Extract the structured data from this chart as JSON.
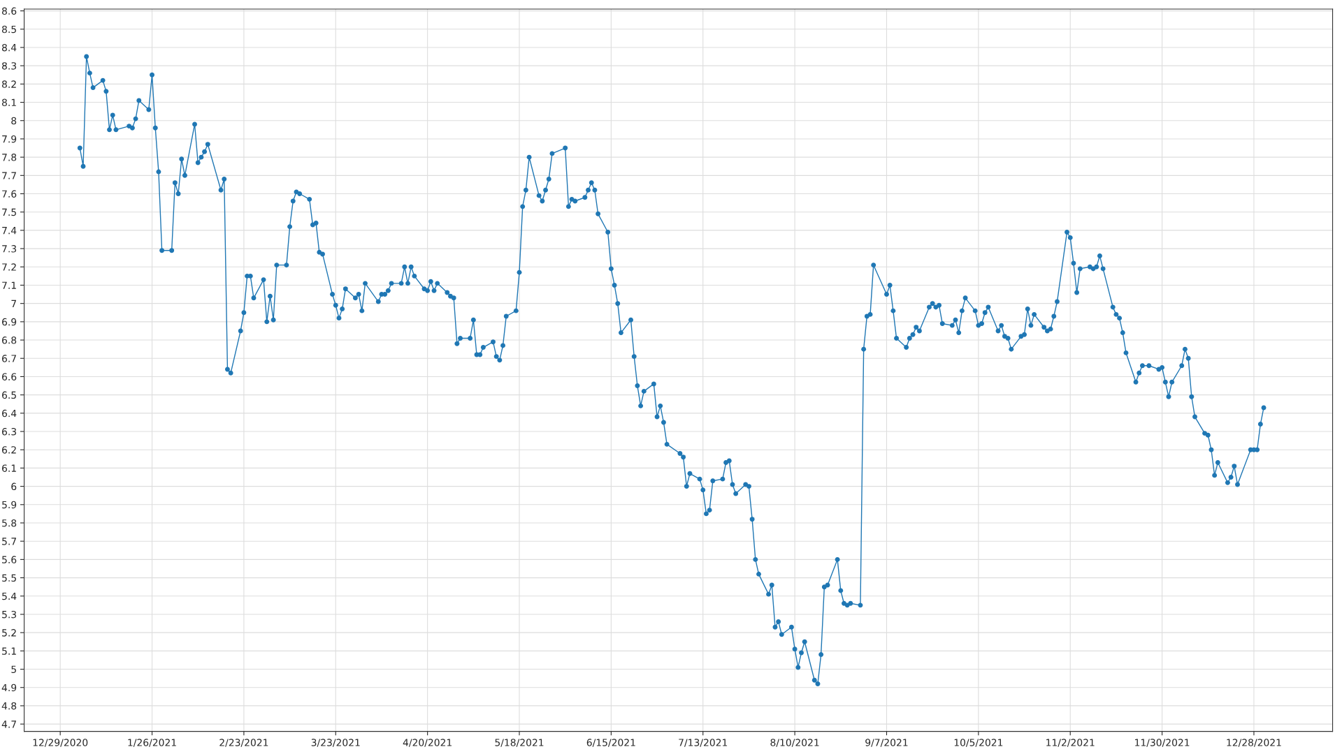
{
  "chart_data": {
    "type": "line",
    "marker": "circle",
    "line_style": "solid",
    "grid": true,
    "xlim": [
      "2020-12-18",
      "2022-01-21"
    ],
    "ylim": [
      4.66,
      8.61
    ],
    "xticks": [
      {
        "value": "2020-12-29",
        "label": "12/29/2020"
      },
      {
        "value": "2021-01-26",
        "label": "1/26/2021"
      },
      {
        "value": "2021-02-23",
        "label": "2/23/2021"
      },
      {
        "value": "2021-03-23",
        "label": "3/23/2021"
      },
      {
        "value": "2021-04-20",
        "label": "4/20/2021"
      },
      {
        "value": "2021-05-18",
        "label": "5/18/2021"
      },
      {
        "value": "2021-06-15",
        "label": "6/15/2021"
      },
      {
        "value": "2021-07-13",
        "label": "7/13/2021"
      },
      {
        "value": "2021-08-10",
        "label": "8/10/2021"
      },
      {
        "value": "2021-09-07",
        "label": "9/7/2021"
      },
      {
        "value": "2021-10-05",
        "label": "10/5/2021"
      },
      {
        "value": "2021-11-02",
        "label": "11/2/2021"
      },
      {
        "value": "2021-11-30",
        "label": "11/30/2021"
      },
      {
        "value": "2021-12-28",
        "label": "12/28/2021"
      }
    ],
    "yticks": [
      4.7,
      4.8,
      4.9,
      5,
      5.1,
      5.2,
      5.3,
      5.4,
      5.5,
      5.6,
      5.7,
      5.8,
      5.9,
      6,
      6.1,
      6.2,
      6.3,
      6.4,
      6.5,
      6.6,
      6.7,
      6.8,
      6.9,
      7,
      7.1,
      7.2,
      7.3,
      7.4,
      7.5,
      7.6,
      7.7,
      7.8,
      7.9,
      8,
      8.1,
      8.2,
      8.3,
      8.4,
      8.5,
      8.6
    ],
    "x": [
      "2021-01-04",
      "2021-01-05",
      "2021-01-06",
      "2021-01-07",
      "2021-01-08",
      "2021-01-11",
      "2021-01-12",
      "2021-01-13",
      "2021-01-14",
      "2021-01-15",
      "2021-01-19",
      "2021-01-20",
      "2021-01-21",
      "2021-01-22",
      "2021-01-25",
      "2021-01-26",
      "2021-01-27",
      "2021-01-28",
      "2021-01-29",
      "2021-02-01",
      "2021-02-02",
      "2021-02-03",
      "2021-02-04",
      "2021-02-05",
      "2021-02-08",
      "2021-02-09",
      "2021-02-10",
      "2021-02-11",
      "2021-02-12",
      "2021-02-16",
      "2021-02-17",
      "2021-02-18",
      "2021-02-19",
      "2021-02-22",
      "2021-02-23",
      "2021-02-24",
      "2021-02-25",
      "2021-02-26",
      "2021-03-01",
      "2021-03-02",
      "2021-03-03",
      "2021-03-04",
      "2021-03-05",
      "2021-03-08",
      "2021-03-09",
      "2021-03-10",
      "2021-03-11",
      "2021-03-12",
      "2021-03-15",
      "2021-03-16",
      "2021-03-17",
      "2021-03-18",
      "2021-03-19",
      "2021-03-22",
      "2021-03-23",
      "2021-03-24",
      "2021-03-25",
      "2021-03-26",
      "2021-03-29",
      "2021-03-30",
      "2021-03-31",
      "2021-04-01",
      "2021-04-05",
      "2021-04-06",
      "2021-04-07",
      "2021-04-08",
      "2021-04-09",
      "2021-04-12",
      "2021-04-13",
      "2021-04-14",
      "2021-04-15",
      "2021-04-16",
      "2021-04-19",
      "2021-04-20",
      "2021-04-21",
      "2021-04-22",
      "2021-04-23",
      "2021-04-26",
      "2021-04-27",
      "2021-04-28",
      "2021-04-29",
      "2021-04-30",
      "2021-05-03",
      "2021-05-04",
      "2021-05-05",
      "2021-05-06",
      "2021-05-07",
      "2021-05-10",
      "2021-05-11",
      "2021-05-12",
      "2021-05-13",
      "2021-05-14",
      "2021-05-17",
      "2021-05-18",
      "2021-05-19",
      "2021-05-20",
      "2021-05-21",
      "2021-05-24",
      "2021-05-25",
      "2021-05-26",
      "2021-05-27",
      "2021-05-28",
      "2021-06-01",
      "2021-06-02",
      "2021-06-03",
      "2021-06-04",
      "2021-06-07",
      "2021-06-08",
      "2021-06-09",
      "2021-06-10",
      "2021-06-11",
      "2021-06-14",
      "2021-06-15",
      "2021-06-16",
      "2021-06-17",
      "2021-06-18",
      "2021-06-21",
      "2021-06-22",
      "2021-06-23",
      "2021-06-24",
      "2021-06-25",
      "2021-06-28",
      "2021-06-29",
      "2021-06-30",
      "2021-07-01",
      "2021-07-02",
      "2021-07-06",
      "2021-07-07",
      "2021-07-08",
      "2021-07-09",
      "2021-07-12",
      "2021-07-13",
      "2021-07-14",
      "2021-07-15",
      "2021-07-16",
      "2021-07-19",
      "2021-07-20",
      "2021-07-21",
      "2021-07-22",
      "2021-07-23",
      "2021-07-26",
      "2021-07-27",
      "2021-07-28",
      "2021-07-29",
      "2021-07-30",
      "2021-08-02",
      "2021-08-03",
      "2021-08-04",
      "2021-08-05",
      "2021-08-06",
      "2021-08-09",
      "2021-08-10",
      "2021-08-11",
      "2021-08-12",
      "2021-08-13",
      "2021-08-16",
      "2021-08-17",
      "2021-08-18",
      "2021-08-19",
      "2021-08-20",
      "2021-08-23",
      "2021-08-24",
      "2021-08-25",
      "2021-08-26",
      "2021-08-27",
      "2021-08-30",
      "2021-08-31",
      "2021-09-01",
      "2021-09-02",
      "2021-09-03",
      "2021-09-07",
      "2021-09-08",
      "2021-09-09",
      "2021-09-10",
      "2021-09-13",
      "2021-09-14",
      "2021-09-15",
      "2021-09-16",
      "2021-09-17",
      "2021-09-20",
      "2021-09-21",
      "2021-09-22",
      "2021-09-23",
      "2021-09-24",
      "2021-09-27",
      "2021-09-28",
      "2021-09-29",
      "2021-09-30",
      "2021-10-01",
      "2021-10-04",
      "2021-10-05",
      "2021-10-06",
      "2021-10-07",
      "2021-10-08",
      "2021-10-11",
      "2021-10-12",
      "2021-10-13",
      "2021-10-14",
      "2021-10-15",
      "2021-10-18",
      "2021-10-19",
      "2021-10-20",
      "2021-10-21",
      "2021-10-22",
      "2021-10-25",
      "2021-10-26",
      "2021-10-27",
      "2021-10-28",
      "2021-10-29",
      "2021-11-01",
      "2021-11-02",
      "2021-11-03",
      "2021-11-04",
      "2021-11-05",
      "2021-11-08",
      "2021-11-09",
      "2021-11-10",
      "2021-11-11",
      "2021-11-12",
      "2021-11-15",
      "2021-11-16",
      "2021-11-17",
      "2021-11-18",
      "2021-11-19",
      "2021-11-22",
      "2021-11-23",
      "2021-11-24",
      "2021-11-26",
      "2021-11-29",
      "2021-11-30",
      "2021-12-01",
      "2021-12-02",
      "2021-12-03",
      "2021-12-06",
      "2021-12-07",
      "2021-12-08",
      "2021-12-09",
      "2021-12-10",
      "2021-12-13",
      "2021-12-14",
      "2021-12-15",
      "2021-12-16",
      "2021-12-17",
      "2021-12-20",
      "2021-12-21",
      "2021-12-22",
      "2021-12-23",
      "2021-12-27",
      "2021-12-28",
      "2021-12-29",
      "2021-12-30",
      "2021-12-31"
    ],
    "series": [
      {
        "color": "#1f77b4",
        "values": [
          7.85,
          7.75,
          8.35,
          8.26,
          8.18,
          8.22,
          8.16,
          7.95,
          8.03,
          7.95,
          7.97,
          7.96,
          8.01,
          8.11,
          8.06,
          8.25,
          7.96,
          7.72,
          7.29,
          7.29,
          7.66,
          7.6,
          7.79,
          7.7,
          7.98,
          7.77,
          7.8,
          7.83,
          7.87,
          7.62,
          7.68,
          6.64,
          6.62,
          6.85,
          6.95,
          7.15,
          7.15,
          7.03,
          7.13,
          6.9,
          7.04,
          6.91,
          7.21,
          7.21,
          7.42,
          7.56,
          7.61,
          7.6,
          7.57,
          7.43,
          7.44,
          7.28,
          7.27,
          7.05,
          6.99,
          6.92,
          6.97,
          7.08,
          7.03,
          7.05,
          6.96,
          7.11,
          7.01,
          7.05,
          7.05,
          7.07,
          7.11,
          7.11,
          7.2,
          7.11,
          7.2,
          7.15,
          7.08,
          7.07,
          7.12,
          7.07,
          7.11,
          7.06,
          7.04,
          7.03,
          6.78,
          6.81,
          6.81,
          6.91,
          6.72,
          6.72,
          6.76,
          6.79,
          6.71,
          6.69,
          6.77,
          6.93,
          6.96,
          7.17,
          7.53,
          7.62,
          7.8,
          7.59,
          7.56,
          7.62,
          7.68,
          7.82,
          7.85,
          7.53,
          7.57,
          7.56,
          7.58,
          7.62,
          7.66,
          7.62,
          7.49,
          7.39,
          7.19,
          7.1,
          7.0,
          6.84,
          6.91,
          6.71,
          6.55,
          6.44,
          6.52,
          6.56,
          6.38,
          6.44,
          6.35,
          6.23,
          6.18,
          6.16,
          6.0,
          6.07,
          6.04,
          5.98,
          5.85,
          5.87,
          6.03,
          6.04,
          6.13,
          6.14,
          6.01,
          5.96,
          6.01,
          6.0,
          5.82,
          5.6,
          5.52,
          5.41,
          5.46,
          5.23,
          5.26,
          5.19,
          5.23,
          5.11,
          5.01,
          5.09,
          5.15,
          4.94,
          4.92,
          5.08,
          5.45,
          5.46,
          5.6,
          5.43,
          5.36,
          5.35,
          5.36,
          5.35,
          6.75,
          6.93,
          6.94,
          7.21,
          7.05,
          7.1,
          6.96,
          6.81,
          6.76,
          6.81,
          6.83,
          6.87,
          6.85,
          6.98,
          7.0,
          6.98,
          6.99,
          6.89,
          6.88,
          6.91,
          6.84,
          6.96,
          7.03,
          6.96,
          6.88,
          6.89,
          6.95,
          6.98,
          6.85,
          6.88,
          6.82,
          6.81,
          6.75,
          6.82,
          6.83,
          6.97,
          6.88,
          6.94,
          6.87,
          6.85,
          6.86,
          6.93,
          7.01,
          7.39,
          7.36,
          7.22,
          7.06,
          7.19,
          7.2,
          7.19,
          7.2,
          7.26,
          7.19,
          6.98,
          6.94,
          6.92,
          6.84,
          6.73,
          6.57,
          6.62,
          6.66,
          6.66,
          6.64,
          6.65,
          6.57,
          6.49,
          6.57,
          6.66,
          6.75,
          6.7,
          6.49,
          6.38,
          6.29,
          6.28,
          6.2,
          6.06,
          6.13,
          6.02,
          6.05,
          6.11,
          6.01,
          6.2,
          6.2,
          6.2,
          6.34,
          6.43
        ]
      }
    ]
  }
}
